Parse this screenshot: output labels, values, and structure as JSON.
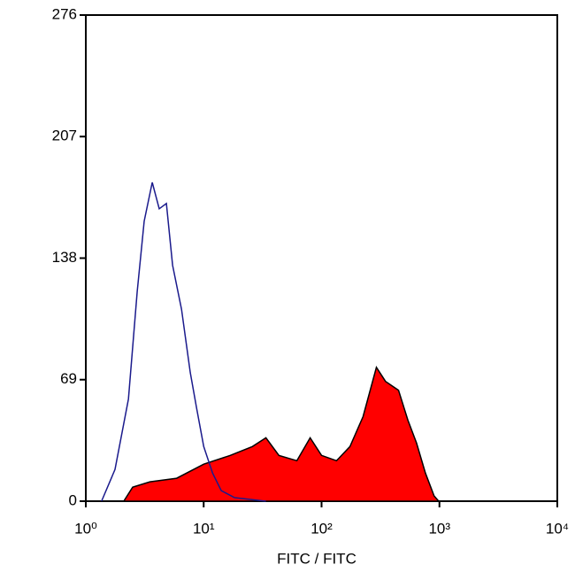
{
  "chart_data": {
    "type": "histogram-overlay",
    "xlabel": "FITC / FITC",
    "xscale": "log",
    "xlim": [
      1,
      10000
    ],
    "xticks": [
      {
        "value": 1,
        "label": "10⁰"
      },
      {
        "value": 10,
        "label": "10¹"
      },
      {
        "value": 100,
        "label": "10²"
      },
      {
        "value": 1000,
        "label": "10³"
      },
      {
        "value": 10000,
        "label": "10⁴"
      }
    ],
    "ylim": [
      0,
      276
    ],
    "yticks": [
      0,
      69,
      138,
      207,
      276
    ],
    "series": [
      {
        "style": "filled",
        "color": "#ff0000",
        "x": [
          2.1,
          2.5,
          3.5,
          5.9,
          10,
          16.8,
          25.9,
          33.7,
          43.5,
          61.7,
          80,
          100,
          134,
          174,
          225,
          292,
          349,
          450,
          540,
          640,
          760,
          900,
          985
        ],
        "values": [
          0,
          8,
          11,
          13,
          21,
          26,
          31,
          36,
          26,
          23,
          36,
          26,
          23,
          31,
          48,
          76,
          68,
          63,
          46,
          33,
          16,
          3,
          0
        ]
      },
      {
        "style": "outline",
        "color": "#1a1a8c",
        "x": [
          1.36,
          1.77,
          2.3,
          2.73,
          3.13,
          3.66,
          4.2,
          4.83,
          5.45,
          6.49,
          7.7,
          8.7,
          10,
          11.9,
          14.1,
          18.3,
          33.7
        ],
        "values": [
          0,
          18,
          58,
          119,
          159,
          181,
          166,
          169,
          134,
          109,
          73,
          53,
          31,
          16,
          6,
          2,
          0
        ]
      }
    ]
  }
}
